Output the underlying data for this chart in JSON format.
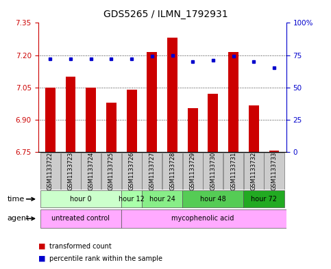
{
  "title": "GDS5265 / ILMN_1792931",
  "samples": [
    "GSM1133722",
    "GSM1133723",
    "GSM1133724",
    "GSM1133725",
    "GSM1133726",
    "GSM1133727",
    "GSM1133728",
    "GSM1133729",
    "GSM1133730",
    "GSM1133731",
    "GSM1133732",
    "GSM1133733"
  ],
  "bar_values": [
    7.05,
    7.1,
    7.05,
    6.98,
    7.04,
    7.215,
    7.28,
    6.955,
    7.02,
    7.215,
    6.965,
    6.755
  ],
  "percentile_values": [
    72,
    72,
    72,
    72,
    72,
    74,
    75,
    70,
    71,
    74,
    70,
    65
  ],
  "ymin": 6.75,
  "ymax": 7.35,
  "yticks": [
    6.75,
    6.9,
    7.05,
    7.2,
    7.35
  ],
  "y2min": 0,
  "y2max": 100,
  "y2ticks": [
    0,
    25,
    50,
    75,
    100
  ],
  "bar_color": "#cc0000",
  "percentile_color": "#0000cc",
  "bar_width": 0.5,
  "time_colors": [
    "#ccffcc",
    "#aaffaa",
    "#88ee88",
    "#55cc55",
    "#22aa22"
  ],
  "time_groups": [
    {
      "label": "hour 0",
      "indices": [
        0,
        1,
        2,
        3
      ]
    },
    {
      "label": "hour 12",
      "indices": [
        4
      ]
    },
    {
      "label": "hour 24",
      "indices": [
        5,
        6
      ]
    },
    {
      "label": "hour 48",
      "indices": [
        7,
        8,
        9
      ]
    },
    {
      "label": "hour 72",
      "indices": [
        10,
        11
      ]
    }
  ],
  "agent_untreated_color": "#ffaaff",
  "agent_myco_color": "#ffccff",
  "legend_items": [
    {
      "label": "transformed count",
      "color": "#cc0000"
    },
    {
      "label": "percentile rank within the sample",
      "color": "#0000cc"
    }
  ],
  "bg_color": "#ffffff",
  "sample_bg_color": "#cccccc",
  "dotted_line_color": "#333333",
  "title_fontsize": 10,
  "tick_fontsize": 7.5,
  "sample_fontsize": 6,
  "label_fontsize": 7,
  "grid_dotted_values": [
    6.9,
    7.05,
    7.2
  ]
}
